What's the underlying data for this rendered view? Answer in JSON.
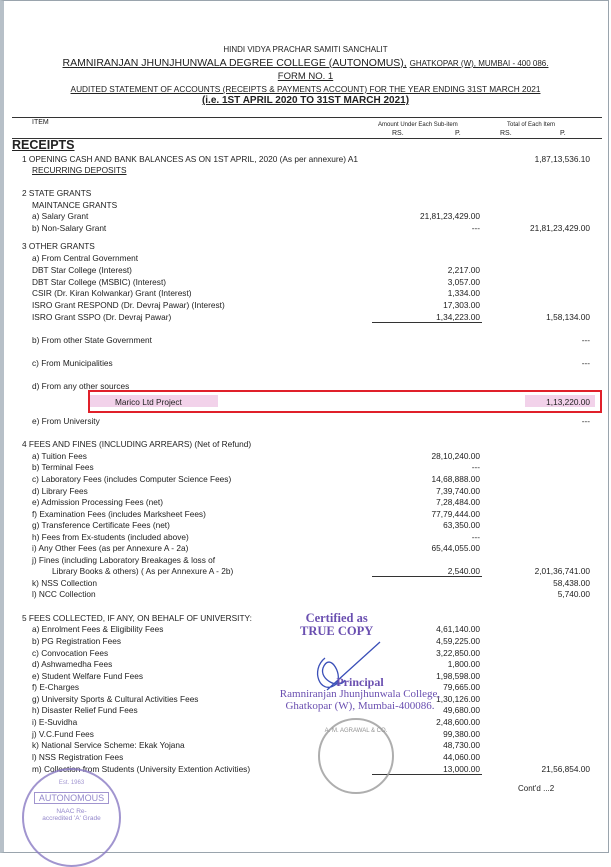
{
  "header": {
    "society": "HINDI VIDYA PRACHAR SAMITI SANCHALIT",
    "college": "RAMNIRANJAN  JHUNJHUNWALA DEGREE COLLEGE (AUTONOMUS),",
    "address": "GHATKOPAR (W),  MUMBAI - 400 086.",
    "form": "FORM NO. 1",
    "statement": "AUDITED STATEMENT OF ACCOUNTS (RECEIPTS & PAYMENTS ACCOUNT) FOR THE YEAR ENDING 31ST MARCH 2021",
    "period": "(i.e. 1ST APRIL 2020 TO 31ST MARCH 2021)"
  },
  "table_header": {
    "item": "ITEM",
    "sub_amount": "Amount Under Each Sub-item",
    "total": "Total of Each Item",
    "rs": "RS.",
    "p": "P.",
    "section": "RECEIPTS"
  },
  "rows": [
    {
      "label": "1 OPENING CASH AND BANK BALANCES AS ON 1ST APRIL, 2020 (As per annexure) A1",
      "indent": 0,
      "sub": "",
      "total": "1,87,13,536.10"
    },
    {
      "label": "RECURRING DEPOSITS",
      "indent": 1,
      "sub": "",
      "total": "",
      "underline": true
    },
    {
      "label": "2 STATE GRANTS",
      "indent": 0,
      "sub": "",
      "total": ""
    },
    {
      "label": "MAINTANCE GRANTS",
      "indent": 1,
      "sub": "",
      "total": ""
    },
    {
      "label": "a) Salary Grant",
      "indent": 1,
      "sub": "21,81,23,429.00",
      "total": ""
    },
    {
      "label": "b) Non-Salary Grant",
      "indent": 1,
      "sub": "---",
      "total": "21,81,23,429.00"
    },
    {
      "label": "3 OTHER GRANTS",
      "indent": 0,
      "sub": "",
      "total": ""
    },
    {
      "label": "a) From Central Government",
      "indent": 1,
      "sub": "",
      "total": ""
    },
    {
      "label": "DBT Star College (Interest)",
      "indent": 2,
      "sub": "2,217.00",
      "total": ""
    },
    {
      "label": "DBT Star College (MSBIC) (Interest)",
      "indent": 2,
      "sub": "3,057.00",
      "total": ""
    },
    {
      "label": "CSIR (Dr. Kiran Kolwankar) Grant (Interest)",
      "indent": 2,
      "sub": "1,334.00",
      "total": ""
    },
    {
      "label": "ISRO Grant RESPOND (Dr. Devraj Pawar) (Interest)",
      "indent": 2,
      "sub": "17,303.00",
      "total": ""
    },
    {
      "label": "ISRO Grant SSPO (Dr. Devraj Pawar)",
      "indent": 2,
      "sub": "1,34,223.00",
      "total": "1,58,134.00",
      "rule": true
    },
    {
      "label": "b) From other State Government",
      "indent": 1,
      "sub": "",
      "total": "---"
    },
    {
      "label": "c) From Municipalities",
      "indent": 1,
      "sub": "",
      "total": "---"
    },
    {
      "label": "d) From any other sources",
      "indent": 1,
      "sub": "",
      "total": ""
    },
    {
      "label": "Marico Ltd Project",
      "indent": 3,
      "sub": "",
      "total": "1,13,220.00",
      "highlight": true
    },
    {
      "label": "e) From University",
      "indent": 1,
      "sub": "",
      "total": "---"
    },
    {
      "label": "4 FEES AND FINES (INCLUDING ARREARS) (Net of Refund)",
      "indent": 0,
      "sub": "",
      "total": ""
    },
    {
      "label": "a) Tuition Fees",
      "indent": 1,
      "sub": "28,10,240.00",
      "total": ""
    },
    {
      "label": "b) Terminal Fees",
      "indent": 1,
      "sub": "---",
      "total": ""
    },
    {
      "label": "c) Laboratory Fees (includes Computer Science Fees)",
      "indent": 1,
      "sub": "14,68,888.00",
      "total": ""
    },
    {
      "label": "d) Library Fees",
      "indent": 1,
      "sub": "7,39,740.00",
      "total": ""
    },
    {
      "label": "e) Admission Processing Fees (net)",
      "indent": 1,
      "sub": "7,28,484.00",
      "total": ""
    },
    {
      "label": "f) Examination Fees (includes Marksheet Fees)",
      "indent": 1,
      "sub": "77,79,444.00",
      "total": ""
    },
    {
      "label": "g) Transference Certificate Fees (net)",
      "indent": 1,
      "sub": "63,350.00",
      "total": ""
    },
    {
      "label": "h) Fees from Ex-students (included above)",
      "indent": 1,
      "sub": "---",
      "total": ""
    },
    {
      "label": "i) Any Other Fees (as per Annexure A - 2a)",
      "indent": 1,
      "sub": "65,44,055.00",
      "total": ""
    },
    {
      "label": "j) Fines (including Laboratory Breakages & loss of",
      "indent": 1,
      "sub": "",
      "total": ""
    },
    {
      "label": "Library Books & others) ( As per Annexure A - 2b)",
      "indent": 4,
      "sub": "2,540.00",
      "total": "2,01,36,741.00",
      "rule": true
    },
    {
      "label": "k) NSS Collection",
      "indent": 1,
      "sub": "",
      "total": "58,438.00"
    },
    {
      "label": "l) NCC Collection",
      "indent": 1,
      "sub": "",
      "total": "5,740.00"
    },
    {
      "label": "5 FEES COLLECTED, IF ANY, ON BEHALF OF UNIVERSITY:",
      "indent": 0,
      "sub": "",
      "total": ""
    },
    {
      "label": "a) Enrolment Fees & Eligibility Fees",
      "indent": 1,
      "sub": "4,61,140.00",
      "total": ""
    },
    {
      "label": "b) PG Registration Fees",
      "indent": 1,
      "sub": "4,59,225.00",
      "total": ""
    },
    {
      "label": "c) Convocation Fees",
      "indent": 1,
      "sub": "3,22,850.00",
      "total": ""
    },
    {
      "label": "d) Ashwamedha Fees",
      "indent": 1,
      "sub": "1,800.00",
      "total": ""
    },
    {
      "label": "e) Student Welfare Fund Fees",
      "indent": 1,
      "sub": "1,98,598.00",
      "total": ""
    },
    {
      "label": "f) E-Charges",
      "indent": 1,
      "sub": "79,665.00",
      "total": ""
    },
    {
      "label": "g) University Sports & Cultural Activities Fees",
      "indent": 1,
      "sub": "1,30,126.00",
      "total": ""
    },
    {
      "label": "h) Disaster Relief Fund Fees",
      "indent": 1,
      "sub": "49,680.00",
      "total": ""
    },
    {
      "label": "i) E-Suvidha",
      "indent": 1,
      "sub": "2,48,600.00",
      "total": ""
    },
    {
      "label": "j) V.C.Fund Fees",
      "indent": 1,
      "sub": "99,380.00",
      "total": ""
    },
    {
      "label": "k) National Service Scheme: Ekak Yojana",
      "indent": 1,
      "sub": "48,730.00",
      "total": ""
    },
    {
      "label": "l) NSS Registration Fees",
      "indent": 1,
      "sub": "44,060.00",
      "total": ""
    },
    {
      "label": "m) Collection from Students (University Extention Activities)",
      "indent": 1,
      "sub": "13,000.00",
      "total": "21,56,854.00",
      "rule": true
    }
  ],
  "footer": {
    "continued": "Cont'd ...2"
  },
  "stamps": {
    "certified": "Certified as",
    "true_copy": "TRUE COPY",
    "principal": "Principal",
    "college": "Ramniranjan Jhunjhunwala College,",
    "address": "Ghatkopar (W), Mumbai-400086.",
    "seal_text": "AUTONOMOUS",
    "seal_est": "Est. 1963",
    "seal_naac": "NAAC Re-accredited 'A' Grade",
    "auditor_seal": "A. M. AGRAWAL & CO."
  },
  "colors": {
    "highlight_box": "#e0202a",
    "stamp_ink": "#6a4fb0"
  }
}
